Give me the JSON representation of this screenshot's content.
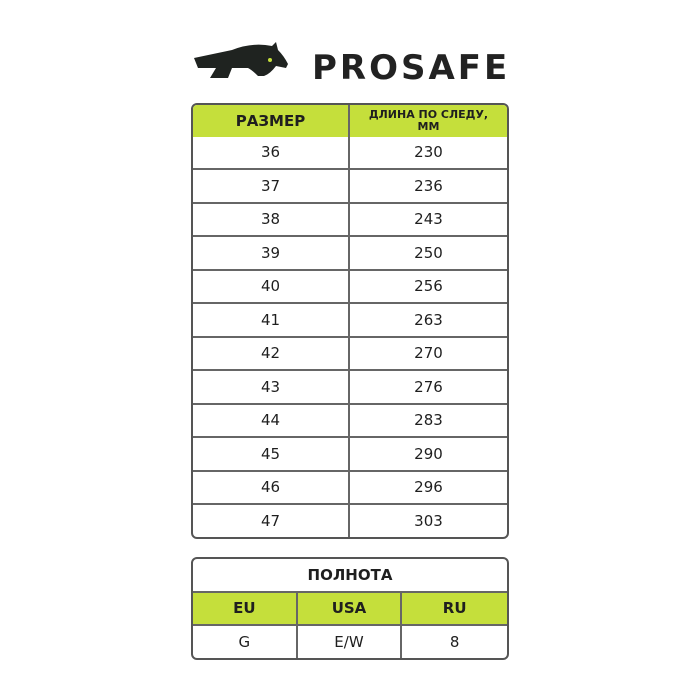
{
  "brand": {
    "name": "PROSAFE",
    "accent": "#c5df3b"
  },
  "size_table": {
    "headers": [
      "РАЗМЕР",
      "ДЛИНА ПО СЛЕДУ,",
      "ММ"
    ],
    "rows": [
      [
        "36",
        "230"
      ],
      [
        "37",
        "236"
      ],
      [
        "38",
        "243"
      ],
      [
        "39",
        "250"
      ],
      [
        "40",
        "256"
      ],
      [
        "41",
        "263"
      ],
      [
        "42",
        "270"
      ],
      [
        "43",
        "276"
      ],
      [
        "44",
        "283"
      ],
      [
        "45",
        "290"
      ],
      [
        "46",
        "296"
      ],
      [
        "47",
        "303"
      ]
    ]
  },
  "width_table": {
    "title": "ПОЛНОТА",
    "headers": [
      "EU",
      "USA",
      "RU"
    ],
    "values": [
      "G",
      "E/W",
      "8"
    ]
  }
}
